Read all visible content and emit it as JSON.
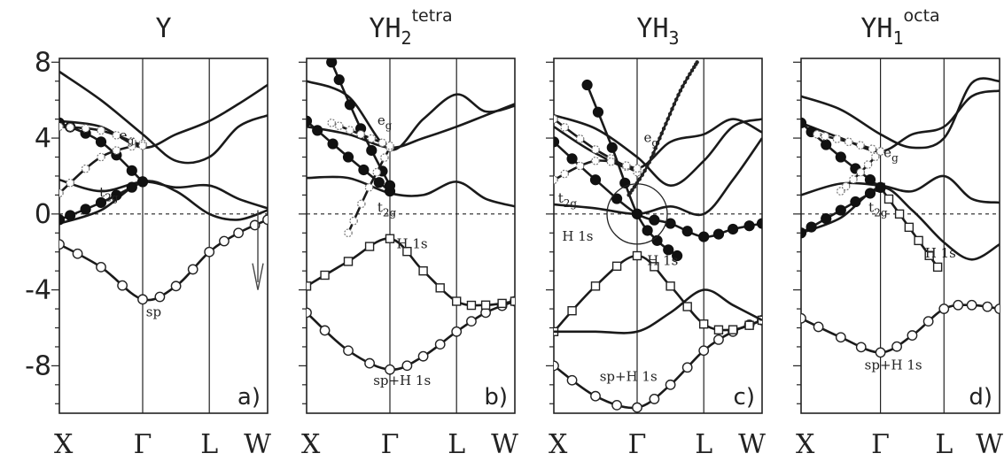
{
  "y_ticks": [
    "8",
    "4",
    "0",
    "-4",
    "-8"
  ],
  "chart_data": [
    {
      "type": "line",
      "title": "Y",
      "title_sub": "",
      "title_sup": "",
      "panel_label": "a)",
      "x_ticks": [
        "X",
        "Γ",
        "L",
        "W"
      ],
      "ylim": [
        -10.5,
        8.2
      ],
      "fermi_level": 0,
      "annotations": [
        {
          "text": "e",
          "sub": "g",
          "x": 0.72,
          "y": 3.9
        },
        {
          "text": "t",
          "sub": "2g",
          "x": 0.48,
          "y": 0.9
        },
        {
          "text": "sp",
          "sub": "",
          "x": 1.05,
          "y": -5.4
        }
      ],
      "bands": [
        {
          "x": [
            0,
            0.5,
            1.0,
            1.5,
            2.0,
            2.5,
            3.0
          ],
          "y": [
            -1.6,
            -2.8,
            -4.5,
            -3.8,
            -2.0,
            -1.0,
            -0.3
          ],
          "marker": "open-circle"
        },
        {
          "x": [
            0,
            0.5,
            1.0,
            1.5,
            2.0,
            2.5,
            3.0
          ],
          "y": [
            -0.5,
            0.2,
            1.7,
            1.2,
            0.0,
            -0.3,
            0.2
          ]
        },
        {
          "x": [
            0,
            0.5,
            1.0,
            1.5,
            2.0,
            2.5,
            3.0
          ],
          "y": [
            1.8,
            1.2,
            1.7,
            1.4,
            1.5,
            0.8,
            0.3
          ]
        },
        {
          "x": [
            0,
            0.5,
            1.0,
            1.5,
            2.0,
            2.5,
            3.0
          ],
          "y": [
            4.9,
            4.6,
            3.5,
            4.2,
            4.9,
            5.8,
            6.8
          ]
        },
        {
          "x": [
            0,
            0.5,
            1.0,
            1.5,
            2.0,
            2.5,
            3.0
          ],
          "y": [
            7.5,
            6.0,
            4.2,
            2.8,
            3.0,
            4.6,
            5.2
          ]
        },
        {
          "x": [
            0,
            0.5,
            1.0
          ],
          "y": [
            -0.3,
            0.6,
            1.7
          ],
          "marker": "filled-circle"
        },
        {
          "x": [
            0,
            0.5,
            1.0
          ],
          "y": [
            4.8,
            3.8,
            1.7
          ],
          "marker": "filled-circle"
        },
        {
          "x": [
            0,
            0.5,
            1.0
          ],
          "y": [
            1.1,
            3.0,
            3.7
          ],
          "marker": "open-diamond"
        },
        {
          "x": [
            0,
            0.5,
            1.0
          ],
          "y": [
            4.6,
            4.4,
            3.6
          ],
          "marker": "open-diamond"
        }
      ]
    },
    {
      "type": "line",
      "title": "YH",
      "title_sub": "2",
      "title_sup": "tetra",
      "panel_label": "b)",
      "x_ticks": [
        "X",
        "Γ",
        "L",
        "W"
      ],
      "ylim": [
        -10.5,
        8.2
      ],
      "fermi_level": 0,
      "annotations": [
        {
          "text": "e",
          "sub": "g",
          "x": 0.85,
          "y": 4.7
        },
        {
          "text": "t",
          "sub": "2g",
          "x": 0.85,
          "y": 0.1
        },
        {
          "text": "H 1s",
          "sub": "",
          "x": 1.1,
          "y": -1.8
        },
        {
          "text": "sp+H 1s",
          "sub": "",
          "x": 0.8,
          "y": -9.0
        }
      ],
      "bands": [
        {
          "x": [
            0,
            0.5,
            1.0,
            1.5,
            2.0,
            2.5,
            3.0
          ],
          "y": [
            -5.2,
            -7.2,
            -8.2,
            -7.5,
            -6.2,
            -5.2,
            -4.6
          ],
          "marker": "open-circle"
        },
        {
          "x": [
            0,
            0.5,
            1.0,
            1.5,
            2.0,
            2.5,
            3.0
          ],
          "y": [
            -3.8,
            -2.5,
            -1.3,
            -3.0,
            -4.6,
            -4.8,
            -4.6
          ],
          "marker": "open-square"
        },
        {
          "x": [
            0,
            0.5,
            1.0,
            1.5,
            2.0,
            2.5,
            3.0
          ],
          "y": [
            1.9,
            1.9,
            1.1,
            1.0,
            1.7,
            0.8,
            0.4
          ]
        },
        {
          "x": [
            0,
            0.5,
            1.0,
            1.5,
            2.0,
            2.5,
            3.0
          ],
          "y": [
            4.6,
            4.2,
            3.5,
            4.0,
            4.6,
            5.2,
            5.8
          ]
        },
        {
          "x": [
            0,
            0.5,
            1.0,
            1.5,
            2.0,
            2.5,
            3.0
          ],
          "y": [
            7.0,
            6.2,
            3.4,
            5.0,
            6.3,
            5.4,
            5.7
          ]
        },
        {
          "x": [
            0,
            0.5,
            1.0
          ],
          "y": [
            4.9,
            3.0,
            1.2
          ],
          "marker": "filled-circle"
        },
        {
          "x": [
            0.3,
            0.65,
            1.0
          ],
          "y": [
            8.0,
            4.5,
            1.5
          ],
          "marker": "filled-circle"
        },
        {
          "x": [
            0.5,
            0.75,
            1.0
          ],
          "y": [
            -1.0,
            1.4,
            3.5
          ],
          "marker": "open-diamond"
        },
        {
          "x": [
            0.3,
            0.65,
            1.0
          ],
          "y": [
            4.8,
            4.2,
            3.6
          ],
          "marker": "open-diamond"
        }
      ]
    },
    {
      "type": "line",
      "title": "YH",
      "title_sub": "3",
      "title_sup": "",
      "panel_label": "c)",
      "x_ticks": [
        "X",
        "Γ",
        "L",
        "W"
      ],
      "ylim": [
        -10.5,
        8.2
      ],
      "fermi_level": 0,
      "annotations": [
        {
          "text": "e",
          "sub": "g",
          "x": 1.1,
          "y": 3.8
        },
        {
          "text": "t",
          "sub": "2g",
          "x": 0.05,
          "y": 0.6
        },
        {
          "text": "H 1s",
          "sub": "",
          "x": 0.1,
          "y": -1.4
        },
        {
          "text": "H 1s",
          "sub": "",
          "x": 1.15,
          "y": -2.7
        },
        {
          "text": "sp+H 1s",
          "sub": "",
          "x": 0.55,
          "y": -8.8
        }
      ],
      "bands": [
        {
          "x": [
            0,
            0.5,
            1.0,
            1.5,
            2.0,
            2.5,
            3.0
          ],
          "y": [
            -8.0,
            -9.6,
            -10.2,
            -9.0,
            -7.2,
            -6.2,
            -5.6
          ],
          "marker": "open-circle"
        },
        {
          "x": [
            0,
            0.5,
            1.0,
            1.5,
            2.0,
            2.5,
            3.0
          ],
          "y": [
            -6.2,
            -3.8,
            -2.2,
            -3.8,
            -5.8,
            -6.1,
            -5.6
          ],
          "marker": "open-square"
        },
        {
          "x": [
            0,
            0.5,
            1.0,
            1.5,
            2.0,
            2.5,
            3.0
          ],
          "y": [
            -6.2,
            -6.2,
            -6.2,
            -5.2,
            -4.0,
            -4.8,
            -5.6
          ]
        },
        {
          "x": [
            0,
            0.5,
            1.0,
            1.5,
            2.0,
            2.5,
            3.0
          ],
          "y": [
            3.8,
            1.8,
            0.0,
            -0.5,
            -1.2,
            -0.8,
            -0.5
          ],
          "marker": "filled-circle"
        },
        {
          "x": [
            0,
            0.5,
            1.0,
            1.5,
            2.0,
            2.5,
            3.0
          ],
          "y": [
            0.5,
            0.3,
            0.0,
            0.4,
            0.0,
            1.8,
            4.0
          ]
        },
        {
          "x": [
            0,
            0.5,
            1.0,
            1.5,
            2.0,
            2.5,
            3.0
          ],
          "y": [
            4.6,
            3.2,
            2.4,
            3.8,
            4.2,
            5.0,
            4.3
          ]
        },
        {
          "x": [
            0,
            0.5,
            1.0,
            1.5,
            2.0,
            2.5,
            3.0
          ],
          "y": [
            5.2,
            4.5,
            3.0,
            1.5,
            2.8,
            4.6,
            5.0
          ]
        },
        {
          "x": [
            0.4,
            0.7,
            1.0,
            1.3,
            1.6
          ],
          "y": [
            6.8,
            3.5,
            0.0,
            -1.4,
            -2.2
          ],
          "marker": "filled-circle"
        },
        {
          "x": [
            0.9,
            1.15,
            1.4,
            1.65,
            1.9
          ],
          "y": [
            1.0,
            2.5,
            4.5,
            6.5,
            8.0
          ],
          "marker": "small-dot"
        },
        {
          "x": [
            0,
            0.5,
            1.0
          ],
          "y": [
            5.0,
            3.4,
            2.2
          ],
          "marker": "open-diamond"
        },
        {
          "x": [
            0,
            0.5,
            1.0
          ],
          "y": [
            1.8,
            2.8,
            2.4
          ],
          "marker": "open-diamond"
        }
      ]
    },
    {
      "type": "line",
      "title": "YH",
      "title_sub": "1",
      "title_sup": "octa",
      "panel_label": "d)",
      "x_ticks": [
        "X",
        "Γ",
        "L",
        "W"
      ],
      "ylim": [
        -10.5,
        8.2
      ],
      "fermi_level": 0,
      "annotations": [
        {
          "text": "e",
          "sub": "g",
          "x": 1.05,
          "y": 3.0
        },
        {
          "text": "t",
          "sub": "2g",
          "x": 0.85,
          "y": 0.1
        },
        {
          "text": "H 1s",
          "sub": "",
          "x": 1.7,
          "y": -2.3
        },
        {
          "text": "sp+H 1s",
          "sub": "",
          "x": 0.8,
          "y": -8.2
        }
      ],
      "bands": [
        {
          "x": [
            0,
            0.5,
            1.0,
            1.5,
            2.0,
            2.5,
            3.0
          ],
          "y": [
            -5.5,
            -6.5,
            -7.3,
            -6.4,
            -5.0,
            -4.8,
            -5.0
          ],
          "marker": "open-circle"
        },
        {
          "x": [
            0,
            0.5,
            1.0,
            1.5,
            2.0,
            2.5,
            3.0
          ],
          "y": [
            -1.0,
            -0.2,
            1.4,
            0.2,
            -1.5,
            -2.4,
            -1.6
          ]
        },
        {
          "x": [
            1.0,
            1.3,
            1.6,
            1.9
          ],
          "y": [
            1.4,
            0.0,
            -1.4,
            -2.8
          ],
          "marker": "open-square"
        },
        {
          "x": [
            0,
            0.5,
            1.0,
            1.5,
            2.0,
            2.5,
            3.0
          ],
          "y": [
            1.0,
            1.6,
            1.5,
            1.2,
            2.0,
            0.8,
            0.6
          ]
        },
        {
          "x": [
            0,
            0.5,
            1.0,
            1.5,
            2.0,
            2.5,
            3.0
          ],
          "y": [
            4.8,
            4.0,
            3.3,
            4.2,
            4.6,
            6.2,
            6.5
          ]
        },
        {
          "x": [
            0,
            0.5,
            1.0,
            1.5,
            2.0,
            2.5,
            3.0
          ],
          "y": [
            6.2,
            5.5,
            4.2,
            3.5,
            4.0,
            6.9,
            7.0
          ]
        },
        {
          "x": [
            0,
            0.5,
            1.0
          ],
          "y": [
            -1.0,
            0.2,
            1.4
          ],
          "marker": "filled-circle"
        },
        {
          "x": [
            0,
            0.5,
            1.0
          ],
          "y": [
            4.8,
            3.0,
            1.4
          ],
          "marker": "filled-circle"
        },
        {
          "x": [
            0.2,
            0.6,
            1.0
          ],
          "y": [
            4.2,
            3.8,
            3.3
          ],
          "marker": "open-diamond"
        },
        {
          "x": [
            0.5,
            0.75,
            1.0
          ],
          "y": [
            1.2,
            2.2,
            3.3
          ],
          "marker": "open-diamond"
        }
      ]
    }
  ]
}
